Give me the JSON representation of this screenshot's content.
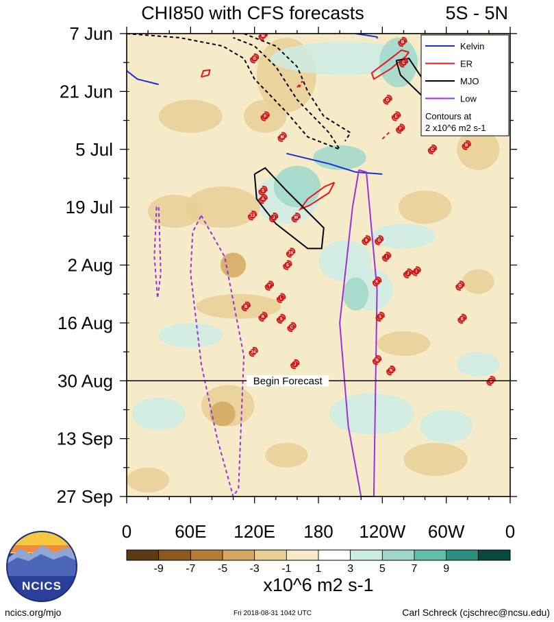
{
  "chart_data": {
    "type": "heatmap",
    "title": "CHI850 with CFS forecasts",
    "subtitle": "5S - 5N",
    "y_axis": {
      "labels": [
        "7 Jun",
        "21 Jun",
        "5 Jul",
        "19 Jul",
        "2 Aug",
        "16 Aug",
        "30 Aug",
        "13 Sep",
        "27 Sep"
      ],
      "day_offsets": [
        0,
        14,
        28,
        42,
        56,
        70,
        84,
        98,
        112
      ],
      "range_days": [
        0,
        112
      ]
    },
    "x_axis": {
      "labels": [
        "0",
        "60E",
        "120E",
        "180",
        "120W",
        "60W",
        "0"
      ],
      "longitudes": [
        0,
        60,
        120,
        180,
        240,
        300,
        360
      ],
      "range": [
        0,
        360
      ]
    },
    "forecast_start_day": 84,
    "forecast_label": "Begin Forecast",
    "colorbar": {
      "levels": [
        -11,
        -9,
        -7,
        -5,
        -3,
        -1,
        1,
        3,
        5,
        7,
        9,
        11
      ],
      "tick_labels": [
        "-9",
        "-7",
        "-5",
        "-3",
        "-1",
        "1",
        "3",
        "5",
        "7",
        "9"
      ],
      "tick_values": [
        -9,
        -7,
        -5,
        -3,
        -1,
        1,
        3,
        5,
        7,
        9
      ],
      "colors": [
        "#5a3b12",
        "#8b5a1f",
        "#b57c35",
        "#d4a860",
        "#e8cf95",
        "#f6ebc9",
        "#ffffff",
        "#cdece5",
        "#9fd8cb",
        "#5fbfac",
        "#2a8f7c",
        "#08493f"
      ],
      "units": "x10^6 m2 s-1"
    },
    "legend": {
      "items": [
        {
          "label": "Kelvin",
          "color": "#1530d8"
        },
        {
          "label": "ER",
          "color": "#e8151a"
        },
        {
          "label": "MJO",
          "color": "#000000"
        },
        {
          "label": "Low",
          "color": "#9a2ee0"
        }
      ],
      "note_line1": "Contours at",
      "note_line2": "2 x10^6 m2 s-1"
    },
    "anomaly_patches": [
      {
        "lon": 150,
        "day": 10,
        "rx": 28,
        "ry": 9,
        "level": -3
      },
      {
        "lon": 205,
        "day": 6,
        "rx": 70,
        "ry": 4,
        "level": 3
      },
      {
        "lon": 255,
        "day": 7,
        "rx": 18,
        "ry": 6,
        "level": 5
      },
      {
        "lon": 150,
        "day": 40,
        "rx": 30,
        "ry": 6,
        "level": 3
      },
      {
        "lon": 160,
        "day": 37,
        "rx": 22,
        "ry": 5,
        "level": 5
      },
      {
        "lon": 90,
        "day": 42,
        "rx": 35,
        "ry": 5,
        "level": -3
      },
      {
        "lon": 45,
        "day": 43,
        "rx": 25,
        "ry": 4,
        "level": -3
      },
      {
        "lon": 205,
        "day": 55,
        "rx": 25,
        "ry": 5,
        "level": 3
      },
      {
        "lon": 230,
        "day": 62,
        "rx": 20,
        "ry": 5,
        "level": 3
      },
      {
        "lon": 215,
        "day": 63,
        "rx": 12,
        "ry": 4,
        "level": 5
      },
      {
        "lon": 105,
        "day": 66,
        "rx": 40,
        "ry": 3,
        "level": -3
      },
      {
        "lon": 100,
        "day": 56,
        "rx": 12,
        "ry": 3,
        "level": -5
      },
      {
        "lon": 95,
        "day": 90,
        "rx": 25,
        "ry": 5,
        "level": -3
      },
      {
        "lon": 90,
        "day": 92,
        "rx": 12,
        "ry": 3,
        "level": -5
      },
      {
        "lon": 230,
        "day": 92,
        "rx": 40,
        "ry": 5,
        "level": 3
      },
      {
        "lon": 300,
        "day": 95,
        "rx": 25,
        "ry": 4,
        "level": 3
      },
      {
        "lon": 30,
        "day": 92,
        "rx": 25,
        "ry": 4,
        "level": 3
      },
      {
        "lon": 60,
        "day": 73,
        "rx": 30,
        "ry": 3,
        "level": 3
      },
      {
        "lon": 280,
        "day": 42,
        "rx": 25,
        "ry": 4,
        "level": -3
      },
      {
        "lon": 330,
        "day": 28,
        "rx": 20,
        "ry": 5,
        "level": -3
      },
      {
        "lon": 330,
        "day": 60,
        "rx": 15,
        "ry": 3,
        "level": -3
      },
      {
        "lon": 260,
        "day": 75,
        "rx": 25,
        "ry": 3,
        "level": -3
      },
      {
        "lon": 330,
        "day": 80,
        "rx": 20,
        "ry": 3,
        "level": 3
      },
      {
        "lon": 290,
        "day": 103,
        "rx": 30,
        "ry": 4,
        "level": -3
      },
      {
        "lon": 150,
        "day": 102,
        "rx": 20,
        "ry": 3,
        "level": -3
      },
      {
        "lon": 60,
        "day": 20,
        "rx": 30,
        "ry": 4,
        "level": -3
      },
      {
        "lon": 200,
        "day": 30,
        "rx": 25,
        "ry": 3,
        "level": 5
      },
      {
        "lon": 260,
        "day": 49,
        "rx": 30,
        "ry": 3,
        "level": 3
      },
      {
        "lon": 130,
        "day": 20,
        "rx": 20,
        "ry": 4,
        "level": -3
      },
      {
        "lon": 20,
        "day": 108,
        "rx": 20,
        "ry": 3,
        "level": -3
      }
    ],
    "contours": {
      "kelvin": [
        {
          "points": [
            [
              0,
              9
            ],
            [
              10,
              11
            ],
            [
              30,
              12.3
            ]
          ],
          "dashed": false
        },
        {
          "points": [
            [
              150,
              29
            ],
            [
              190,
              31.5
            ],
            [
              215,
              33.5
            ],
            [
              240,
              34
            ]
          ],
          "dashed": false
        },
        {
          "points": [
            [
              215,
              0
            ],
            [
              235,
              0.8
            ],
            [
              235,
              1.2
            ]
          ],
          "dashed": false
        }
      ],
      "er": [
        {
          "points": [
            [
              265,
              4.5
            ],
            [
              258,
              4
            ],
            [
              248,
              6
            ],
            [
              230,
              9.5
            ],
            [
              232,
              11
            ],
            [
              248,
              8.5
            ],
            [
              262,
              5.5
            ],
            [
              265,
              4.5
            ]
          ],
          "dashed": false
        },
        {
          "points": [
            [
              195,
              36
            ],
            [
              186,
              37
            ],
            [
              170,
              40
            ],
            [
              163,
              42.5
            ],
            [
              172,
              41.5
            ],
            [
              190,
              38.5
            ],
            [
              195,
              36
            ]
          ],
          "dashed": false
        },
        {
          "points": [
            [
              70,
              10.5
            ],
            [
              72,
              9
            ],
            [
              78,
              8.8
            ],
            [
              77,
              10
            ],
            [
              70,
              10.5
            ]
          ],
          "dashed": false
        },
        {
          "points": [
            [
              160,
              13
            ],
            [
              165,
              11.5
            ],
            [
              162,
              13
            ]
          ],
          "dashed": true
        },
        {
          "points": [
            [
              240,
              25.5
            ],
            [
              248,
              23.5
            ]
          ],
          "dashed": true
        }
      ],
      "mjo": [
        {
          "points": [
            [
              0,
              0
            ],
            [
              50,
              1
            ],
            [
              90,
              3
            ],
            [
              110,
              6
            ],
            [
              120,
              11
            ],
            [
              150,
              19
            ],
            [
              170,
              25
            ],
            [
              200,
              28
            ],
            [
              190,
              24
            ],
            [
              160,
              16
            ],
            [
              140,
              8
            ],
            [
              120,
              3
            ],
            [
              100,
              1
            ]
          ],
          "dashed": true
        },
        {
          "points": [
            [
              110,
              0
            ],
            [
              140,
              3
            ],
            [
              160,
              8
            ],
            [
              170,
              14
            ],
            [
              185,
              20
            ],
            [
              210,
              24
            ],
            [
              205,
              26
            ]
          ],
          "dashed": true
        },
        {
          "points": [
            [
              120,
              34
            ],
            [
              130,
              32.5
            ],
            [
              150,
              38
            ],
            [
              185,
              47
            ],
            [
              183,
              52
            ],
            [
              170,
              52
            ],
            [
              140,
              46
            ],
            [
              122,
              40
            ],
            [
              120,
              34
            ]
          ],
          "dashed": false
        },
        {
          "points": [
            [
              253,
              6.5
            ],
            [
              265,
              6
            ],
            [
              283,
              13
            ],
            [
              277,
              15
            ],
            [
              257,
              10
            ],
            [
              253,
              6.5
            ]
          ],
          "dashed": false
        }
      ],
      "low": [
        {
          "points": [
            [
              30,
              42
            ],
            [
              32,
              58
            ],
            [
              29,
              64
            ],
            [
              26,
              54
            ],
            [
              28,
              42
            ],
            [
              30,
              42
            ]
          ],
          "dashed": true
        },
        {
          "points": [
            [
              70,
              44
            ],
            [
              92,
              54
            ],
            [
              110,
              78
            ],
            [
              105,
              110
            ],
            [
              100,
              112
            ],
            [
              85,
              98
            ],
            [
              70,
              80
            ],
            [
              60,
              58
            ],
            [
              62,
              48
            ],
            [
              70,
              44
            ]
          ],
          "dashed": true
        },
        {
          "points": [
            [
              218,
              33
            ],
            [
              225,
              33.5
            ],
            [
              235,
              62
            ],
            [
              232,
              112
            ],
            [
              220,
              112
            ],
            [
              208,
              95
            ],
            [
              200,
              70
            ],
            [
              212,
              42
            ],
            [
              218,
              33
            ]
          ],
          "dashed": false
        }
      ]
    },
    "storms": [
      {
        "label": "M",
        "lon": 128,
        "day": 0.5
      },
      {
        "label": "G",
        "lon": 120,
        "day": 6
      },
      {
        "label": "B",
        "lon": 259,
        "day": 2
      },
      {
        "label": "C",
        "lon": 260,
        "day": 7
      },
      {
        "label": "D",
        "lon": 245,
        "day": 16
      },
      {
        "label": "E",
        "lon": 253,
        "day": 20
      },
      {
        "label": "F",
        "lon": 257,
        "day": 23
      },
      {
        "label": "P",
        "lon": 130,
        "day": 20
      },
      {
        "label": "M",
        "lon": 146,
        "day": 25
      },
      {
        "label": "C",
        "lon": 287,
        "day": 28
      },
      {
        "label": "B",
        "lon": 319,
        "day": 27
      },
      {
        "label": "S",
        "lon": 128,
        "day": 38
      },
      {
        "label": "A",
        "lon": 128,
        "day": 40
      },
      {
        "label": "13",
        "lon": 118,
        "day": 44
      },
      {
        "label": "J",
        "lon": 138,
        "day": 44.5
      },
      {
        "label": "W",
        "lon": 159,
        "day": 44.5
      },
      {
        "label": "9",
        "lon": 225,
        "day": 50
      },
      {
        "label": "G",
        "lon": 237,
        "day": 50
      },
      {
        "label": "16",
        "lon": 154,
        "day": 53
      },
      {
        "label": "I",
        "lon": 244,
        "day": 54
      },
      {
        "label": "S",
        "lon": 151,
        "day": 56
      },
      {
        "label": "J",
        "lon": 264,
        "day": 58
      },
      {
        "label": "I",
        "lon": 272,
        "day": 57.5
      },
      {
        "label": "Y",
        "lon": 134,
        "day": 61
      },
      {
        "label": "K",
        "lon": 235,
        "day": 60
      },
      {
        "label": "D",
        "lon": 313,
        "day": 61
      },
      {
        "label": "L",
        "lon": 145,
        "day": 64
      },
      {
        "label": "B",
        "lon": 112,
        "day": 66
      },
      {
        "label": "R",
        "lon": 128,
        "day": 68.5
      },
      {
        "label": "S",
        "lon": 145,
        "day": 69
      },
      {
        "label": "5",
        "lon": 238,
        "day": 68.5
      },
      {
        "label": "E",
        "lon": 315,
        "day": 69
      },
      {
        "label": "C",
        "lon": 155,
        "day": 71
      },
      {
        "label": "24",
        "lon": 119,
        "day": 77
      },
      {
        "label": "N",
        "lon": 235,
        "day": 79
      },
      {
        "label": "J",
        "lon": 158,
        "day": 80
      },
      {
        "label": "N",
        "lon": 248,
        "day": 81.5
      },
      {
        "label": "S",
        "lon": 342,
        "day": 84
      }
    ]
  },
  "footer": {
    "left": "ncics.org/mjo",
    "center": "Fri 2018-08-31 1042 UTC",
    "right": "Carl Schreck (cjschrec@ncsu.edu)",
    "logo_text": "NCICS"
  }
}
